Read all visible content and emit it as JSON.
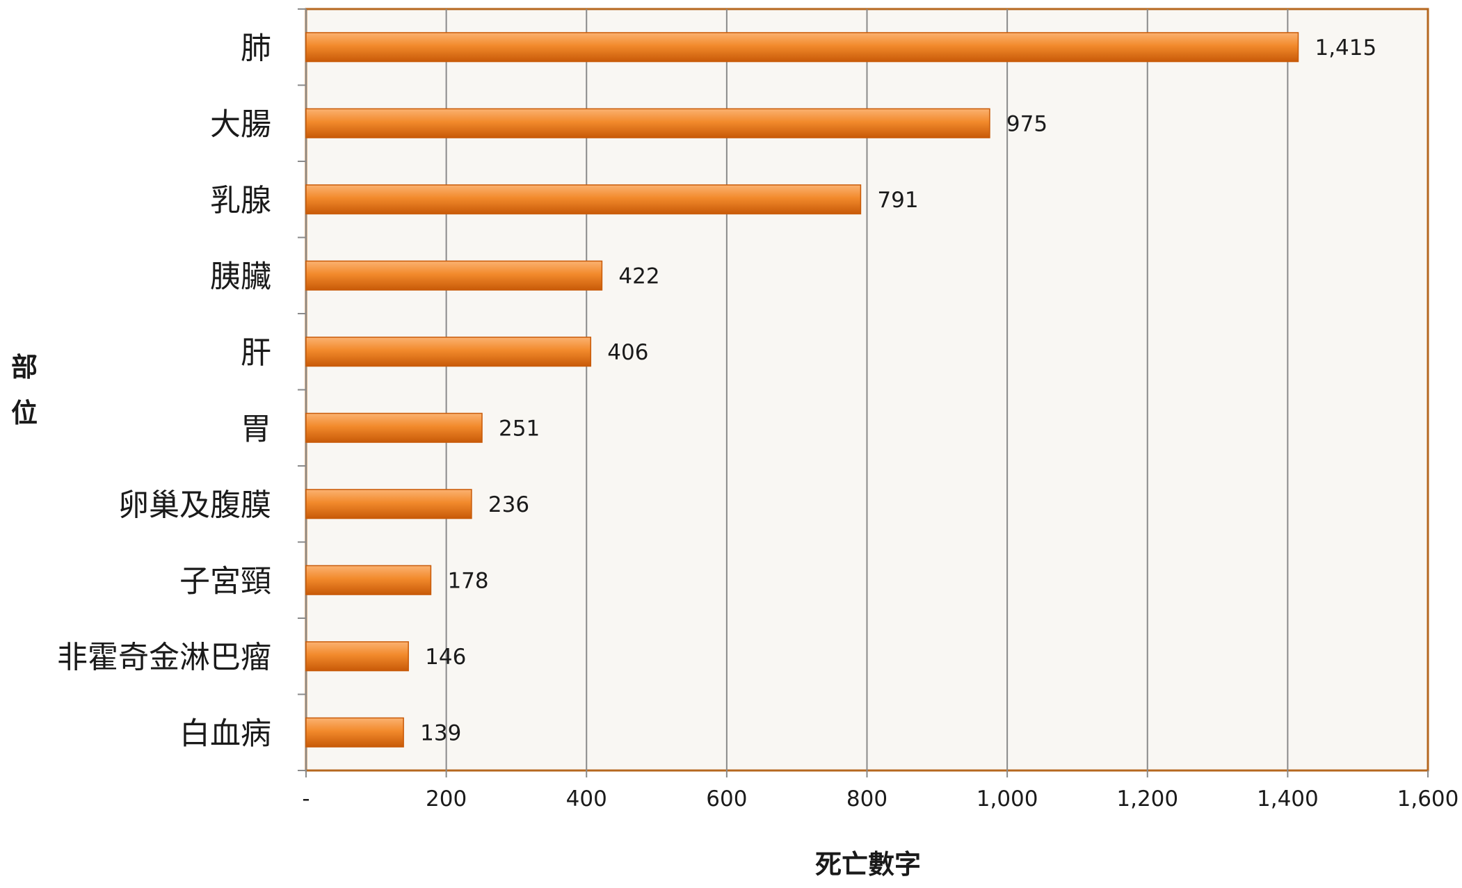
{
  "chart_data": {
    "type": "bar",
    "orientation": "horizontal",
    "categories": [
      "肺",
      "大腸",
      "乳腺",
      "胰臟",
      "肝",
      "胃",
      "卵巢及腹膜",
      "子宮頸",
      "非霍奇金淋巴瘤",
      "白血病"
    ],
    "values": [
      1415,
      975,
      791,
      422,
      406,
      251,
      236,
      178,
      146,
      139
    ],
    "data_labels": [
      "1,415",
      "975",
      "791",
      "422",
      "406",
      "251",
      "236",
      "178",
      "146",
      "139"
    ],
    "xlabel": "死亡數字",
    "ylabel": [
      "部",
      "位"
    ],
    "xlim": [
      0,
      1600
    ],
    "x_ticks": [
      0,
      200,
      400,
      600,
      800,
      1000,
      1200,
      1400,
      1600
    ],
    "x_tick_labels": [
      "-",
      "200",
      "400",
      "600",
      "800",
      "1,000",
      "1,200",
      "1,400",
      "1,600"
    ],
    "grid": "vertical",
    "legend": "none",
    "colors": {
      "bar": "#f07d1a",
      "bar_light": "#fbb271",
      "bar_dark": "#c85a08",
      "plot_background": "#f9f7f3",
      "plot_border": "#b5671f",
      "gridline": "#8a8a8a"
    }
  }
}
